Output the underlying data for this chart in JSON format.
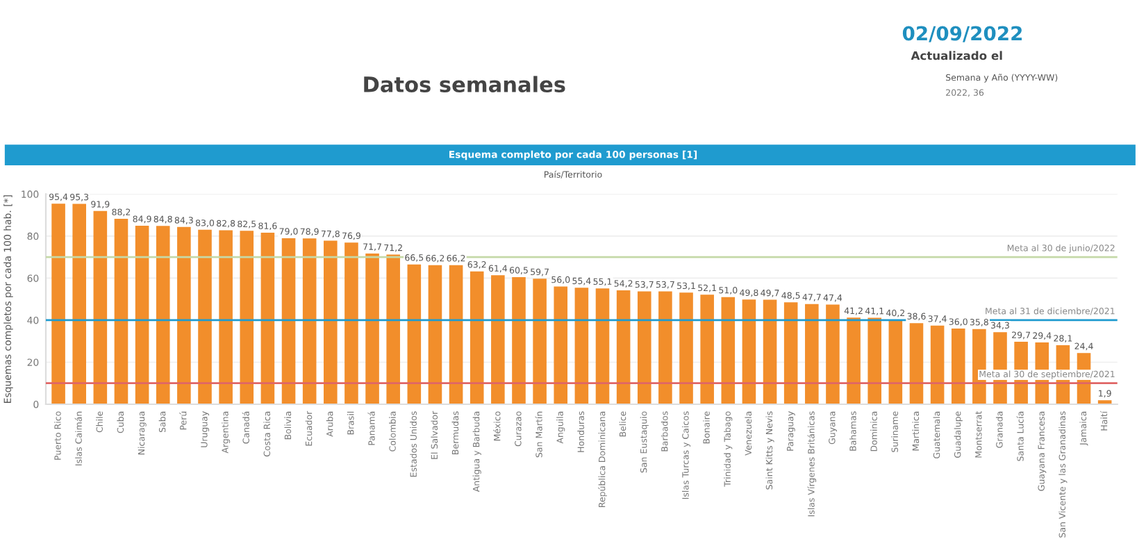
{
  "chart_data": {
    "type": "bar",
    "title": "Esquema completo por cada 100 personas [1]",
    "subtitle": "País/Territorio",
    "ylabel": "Esquemas completos por cada 100 hab. [*]",
    "categories": [
      "Puerto Rico",
      "Islas Caimán",
      "Chile",
      "Cuba",
      "Nicaragua",
      "Saba",
      "Perú",
      "Uruguay",
      "Argentina",
      "Canadá",
      "Costa Rica",
      "Bolivia",
      "Ecuador",
      "Aruba",
      "Brasil",
      "Panamá",
      "Colombia",
      "Estados Unidos",
      "El Salvador",
      "Bermudas",
      "Antigua y Barbuda",
      "México",
      "Curazao",
      "San Martín",
      "Anguila",
      "Honduras",
      "República Dominicana",
      "Belice",
      "San Eustaquio",
      "Barbados",
      "Islas Turcas y Caicos",
      "Bonaire",
      "Trinidad y Tabago",
      "Venezuela",
      "Saint Kitts y Nevis",
      "Paraguay",
      "Islas Vírgenes Británicas",
      "Guyana",
      "Bahamas",
      "Dominica",
      "Suriname",
      "Martinica",
      "Guatemala",
      "Guadalupe",
      "Montserrat",
      "Granada",
      "Santa Lucía",
      "Guayana Francesa",
      "San Vicente y las Granadinas",
      "Jamaica",
      "Haití"
    ],
    "values": [
      95.4,
      95.3,
      91.9,
      88.2,
      84.9,
      84.8,
      84.3,
      83.0,
      82.8,
      82.5,
      81.6,
      79.0,
      78.9,
      77.8,
      76.9,
      71.7,
      71.2,
      66.5,
      66.2,
      66.2,
      63.2,
      61.4,
      60.5,
      59.7,
      56.0,
      55.4,
      55.1,
      54.2,
      53.7,
      53.7,
      53.1,
      52.1,
      51.0,
      49.8,
      49.7,
      48.5,
      47.7,
      47.4,
      41.2,
      41.1,
      40.2,
      38.6,
      37.4,
      36.0,
      35.8,
      34.3,
      29.7,
      29.4,
      28.1,
      24.4,
      1.9
    ],
    "value_labels": [
      "95,4",
      "95,3",
      "91,9",
      "88,2",
      "84,9",
      "84,8",
      "84,3",
      "83,0",
      "82,8",
      "82,5",
      "81,6",
      "79,0",
      "78,9",
      "77,8",
      "76,9",
      "71,7",
      "71,2",
      "66,5",
      "66,2",
      "66,2",
      "63,2",
      "61,4",
      "60,5",
      "59,7",
      "56,0",
      "55,4",
      "55,1",
      "54,2",
      "53,7",
      "53,7",
      "53,1",
      "52,1",
      "51,0",
      "49,8",
      "49,7",
      "48,5",
      "47,7",
      "47,4",
      "41,2",
      "41,1",
      "40,2",
      "38,6",
      "37,4",
      "36,0",
      "35,8",
      "34,3",
      "29,7",
      "29,4",
      "28,1",
      "24,4",
      "1,9"
    ],
    "color": "#f28e2b",
    "ylim": [
      0,
      100
    ],
    "yticks": [
      0,
      20,
      40,
      60,
      80,
      100
    ],
    "grid": "y",
    "ref_lines": [
      {
        "axis": "y",
        "value": 70,
        "label": "Meta al 30 de junio/2022",
        "color": "#c5d9a8"
      },
      {
        "axis": "y",
        "value": 40,
        "label": "Meta al 31 de diciembre/2021",
        "color": "#1f9bcf"
      },
      {
        "axis": "y",
        "value": 10,
        "label": "Meta al 30 de septiembre/2021",
        "color": "#e06666"
      }
    ],
    "annotations": [
      "Datos semanales",
      "02/09/2022",
      "Actualizado el",
      "Semana y Año (YYYY-WW)",
      "2022, 36"
    ]
  }
}
